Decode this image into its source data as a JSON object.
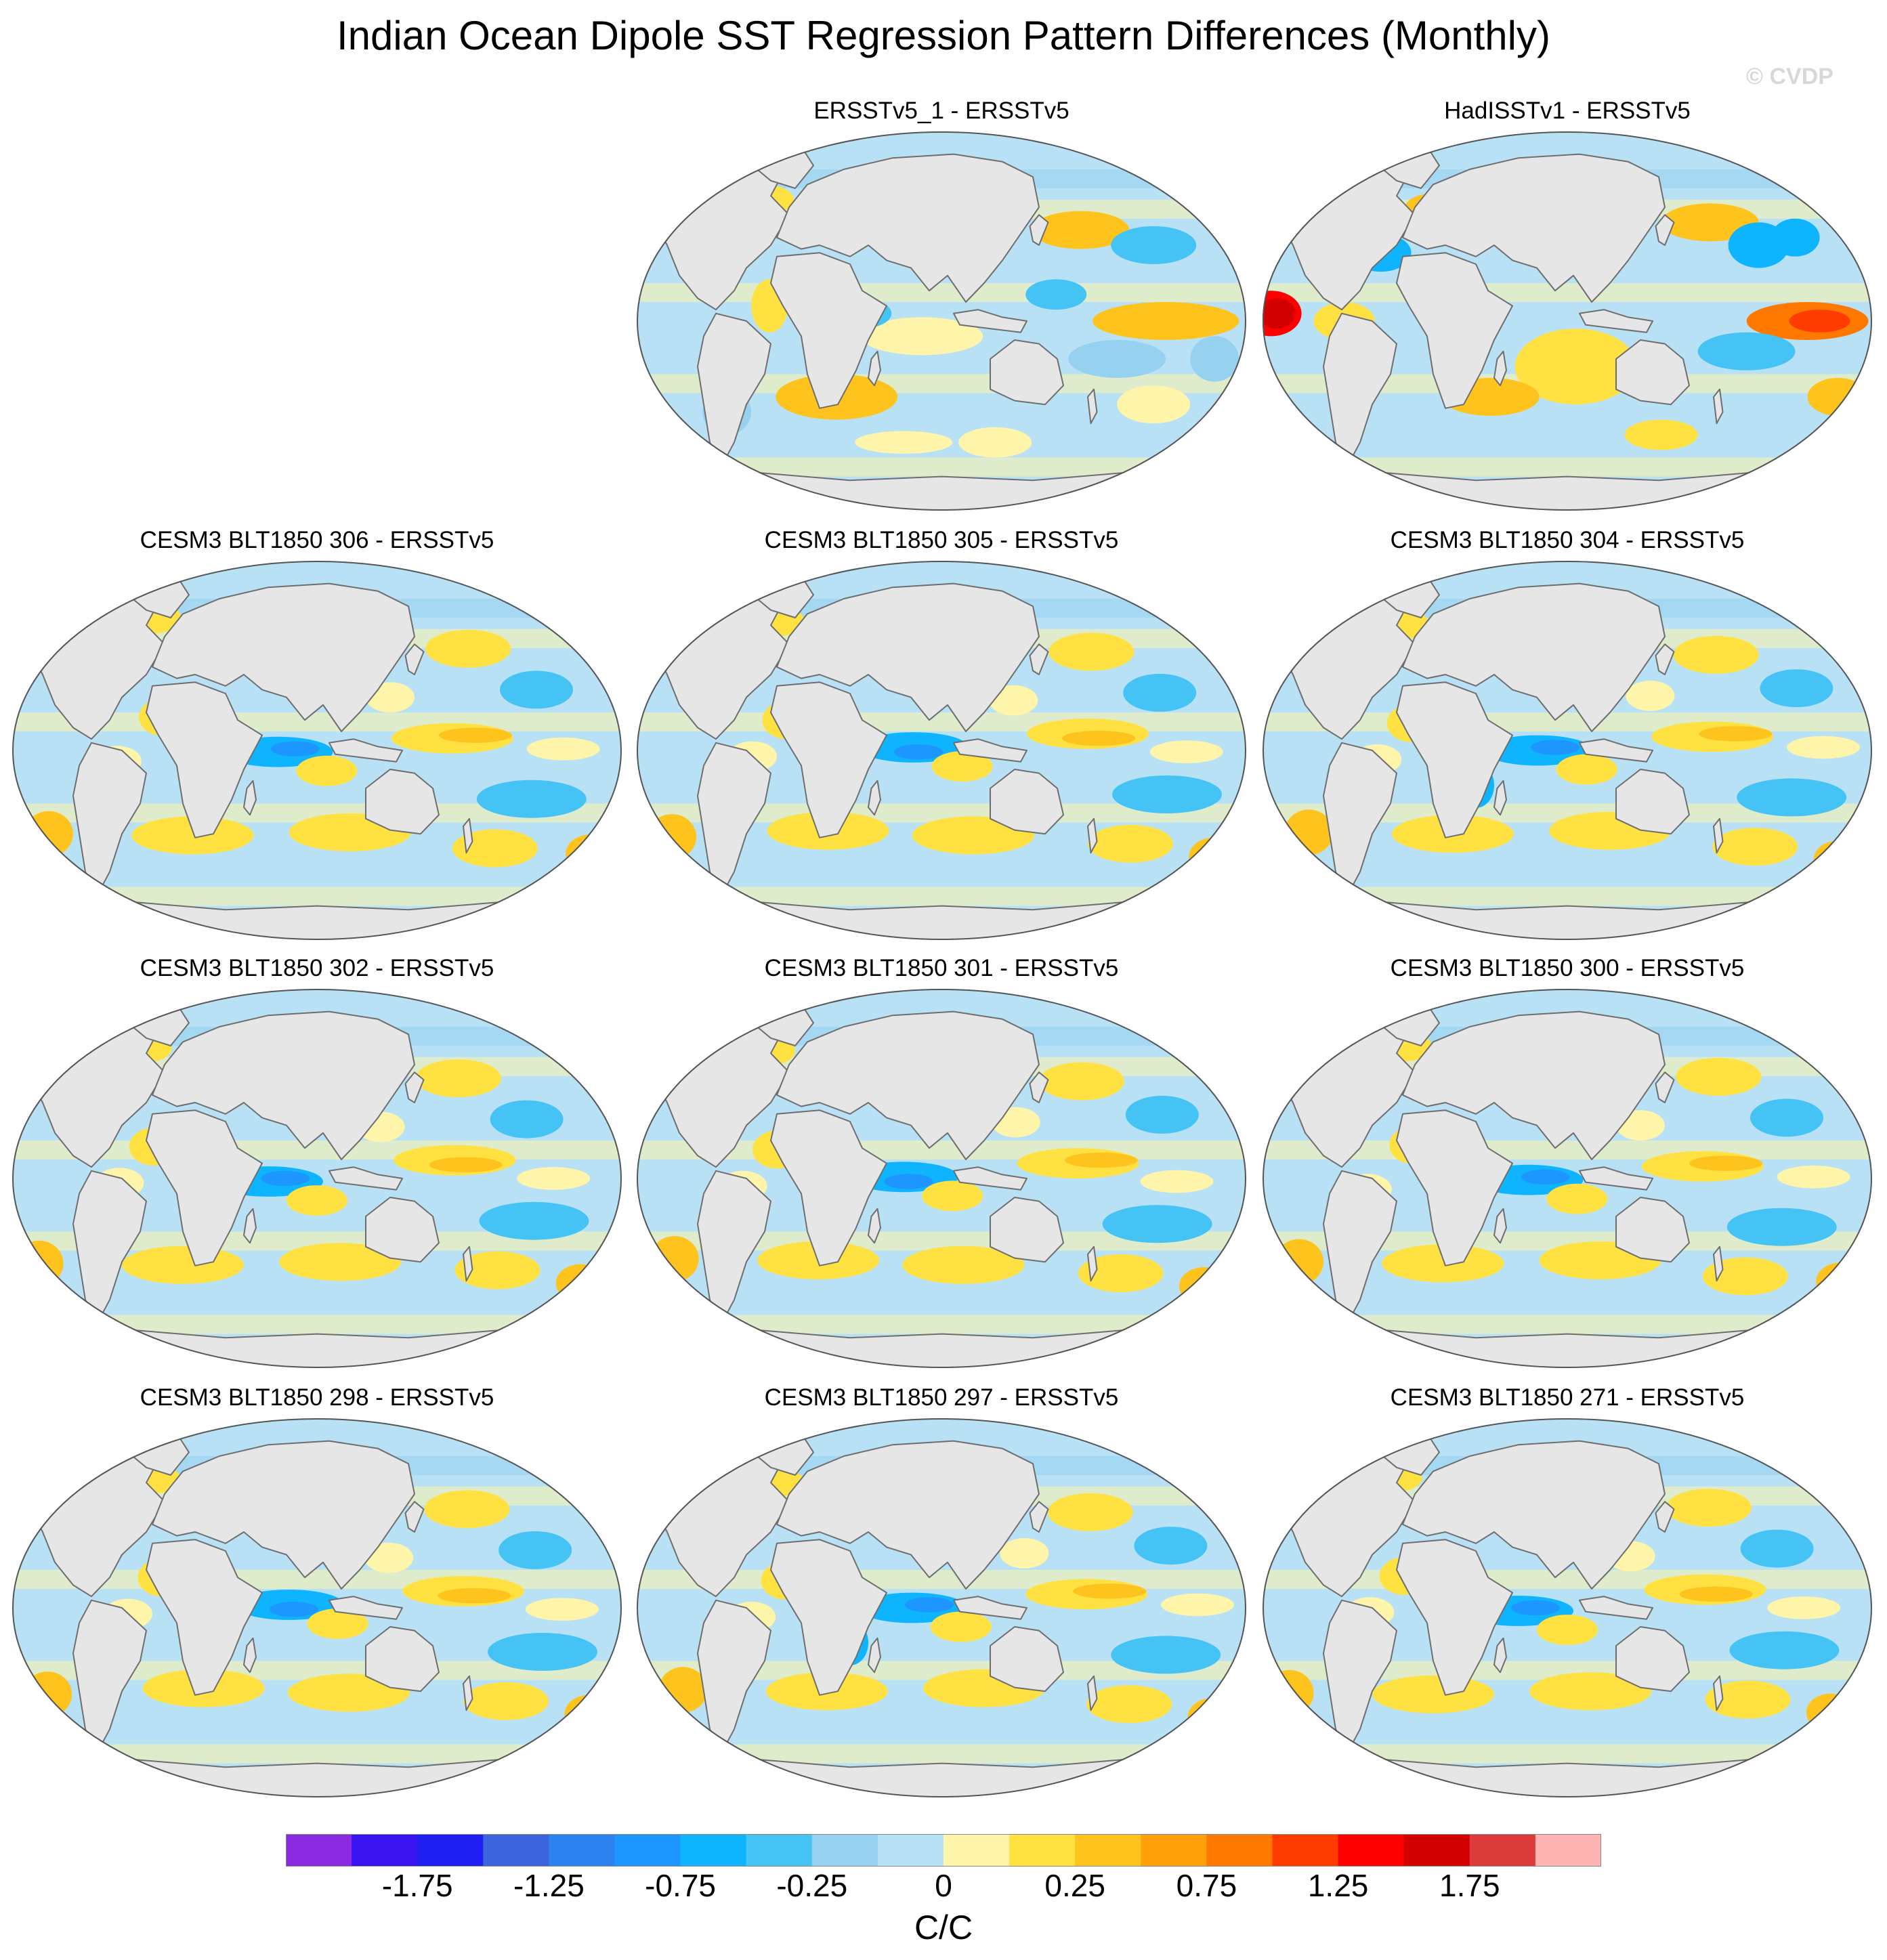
{
  "figure": {
    "title": "Indian Ocean Dipole SST Regression Pattern Differences (Monthly)",
    "watermark": "© CVDP",
    "units": "C/C"
  },
  "panels": [
    {
      "title": "ERSSTv5_1 - ERSSTv5",
      "pattern": "obs1"
    },
    {
      "title": "HadISSTv1 - ERSSTv5",
      "pattern": "obs2"
    },
    {
      "title": "CESM3 BLT1850 306 - ERSSTv5",
      "pattern": "model"
    },
    {
      "title": "CESM3 BLT1850 305 - ERSSTv5",
      "pattern": "model"
    },
    {
      "title": "CESM3 BLT1850 304 - ERSSTv5",
      "pattern": "model"
    },
    {
      "title": "CESM3 BLT1850 302 - ERSSTv5",
      "pattern": "model"
    },
    {
      "title": "CESM3 BLT1850 301 - ERSSTv5",
      "pattern": "model"
    },
    {
      "title": "CESM3 BLT1850 300 - ERSSTv5",
      "pattern": "model"
    },
    {
      "title": "CESM3 BLT1850 298 - ERSSTv5",
      "pattern": "model"
    },
    {
      "title": "CESM3 BLT1850 297 - ERSSTv5",
      "pattern": "model"
    },
    {
      "title": "CESM3 BLT1850 271 - ERSSTv5",
      "pattern": "model"
    }
  ],
  "colorbar": {
    "colors": [
      "#8a2be2",
      "#3a14f0",
      "#1e1ef0",
      "#3c64dc",
      "#2d82f0",
      "#1e96ff",
      "#0fb4ff",
      "#46c3f5",
      "#96d2f0",
      "#b9e1f5",
      "#fff5aa",
      "#ffe141",
      "#ffc31e",
      "#ffa00a",
      "#ff7800",
      "#ff3c00",
      "#ff0000",
      "#d20000",
      "#dc3c3c",
      "#ffb4b4"
    ],
    "labels": [
      "-1.75",
      "-1.25",
      "-0.75",
      "-0.25",
      "0",
      "0.25",
      "0.75",
      "1.25",
      "1.75"
    ]
  },
  "colors": {
    "land": "#e6e6e6",
    "coast": "#6e6e6e",
    "ocean_base": "#b9e1f5"
  }
}
